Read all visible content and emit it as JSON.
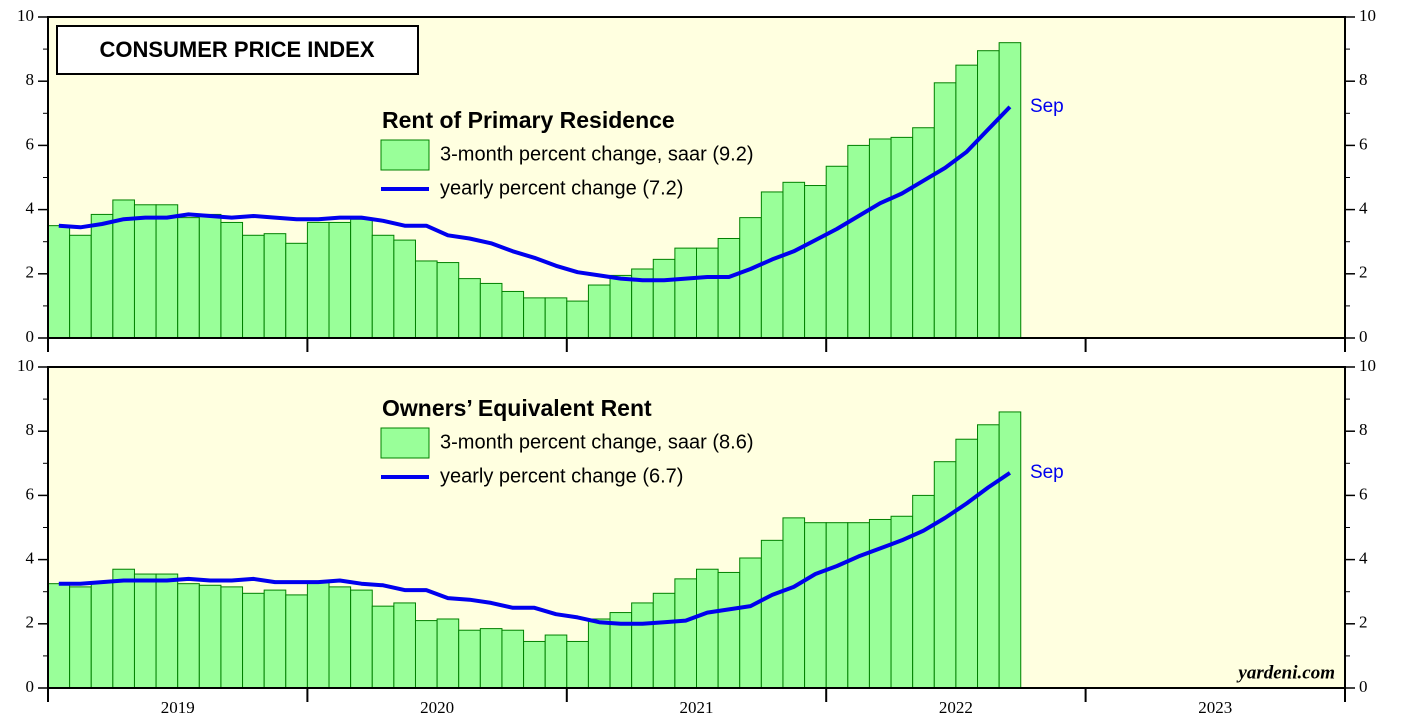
{
  "chart_data": [
    {
      "type": "bar",
      "title": "CONSUMER PRICE INDEX",
      "subtitle": "Rent of Primary Residence",
      "annotation": "Sep",
      "background": "#ffffe0",
      "ylim": [
        0,
        10
      ],
      "yticks": [
        0,
        2,
        4,
        6,
        8,
        10
      ],
      "series": [
        {
          "name": "3-month percent change, saar (9.2)",
          "type": "bar",
          "color": "#99ff99",
          "edge": "#008000",
          "values": [
            3.5,
            3.2,
            3.85,
            4.3,
            4.15,
            4.15,
            3.75,
            3.85,
            3.6,
            3.2,
            3.25,
            2.95,
            3.6,
            3.6,
            3.7,
            3.2,
            3.05,
            2.4,
            2.35,
            1.85,
            1.7,
            1.45,
            1.25,
            1.25,
            1.15,
            1.65,
            1.95,
            2.15,
            2.45,
            2.8,
            2.8,
            3.1,
            3.75,
            4.55,
            4.85,
            4.75,
            5.35,
            6.0,
            6.2,
            6.25,
            6.55,
            7.95,
            8.5,
            8.95,
            9.2
          ]
        },
        {
          "name": "yearly percent change (7.2)",
          "type": "line",
          "color": "#0000ee",
          "values": [
            3.5,
            3.45,
            3.55,
            3.7,
            3.75,
            3.75,
            3.85,
            3.8,
            3.75,
            3.8,
            3.75,
            3.7,
            3.7,
            3.75,
            3.75,
            3.65,
            3.5,
            3.5,
            3.2,
            3.1,
            2.95,
            2.7,
            2.5,
            2.25,
            2.05,
            1.95,
            1.85,
            1.8,
            1.8,
            1.85,
            1.9,
            1.9,
            2.15,
            2.45,
            2.7,
            3.05,
            3.4,
            3.8,
            4.2,
            4.5,
            4.9,
            5.3,
            5.8,
            6.5,
            7.2
          ]
        }
      ]
    },
    {
      "type": "bar",
      "subtitle": "Owners’ Equivalent Rent",
      "annotation": "Sep",
      "source": "yardeni.com",
      "background": "#ffffe0",
      "ylim": [
        0,
        10
      ],
      "yticks": [
        0,
        2,
        4,
        6,
        8,
        10
      ],
      "xlabels": [
        "2019",
        "2020",
        "2021",
        "2022",
        "2023"
      ],
      "series": [
        {
          "name": "3-month percent change, saar (8.6)",
          "type": "bar",
          "color": "#99ff99",
          "edge": "#008000",
          "values": [
            3.25,
            3.15,
            3.3,
            3.7,
            3.55,
            3.55,
            3.25,
            3.2,
            3.15,
            2.95,
            3.05,
            2.9,
            3.3,
            3.15,
            3.05,
            2.55,
            2.65,
            2.1,
            2.15,
            1.8,
            1.85,
            1.8,
            1.45,
            1.65,
            1.45,
            2.15,
            2.35,
            2.65,
            2.95,
            3.4,
            3.7,
            3.6,
            4.05,
            4.6,
            5.3,
            5.15,
            5.15,
            5.15,
            5.25,
            5.35,
            6.0,
            7.05,
            7.75,
            8.2,
            8.6
          ]
        },
        {
          "name": "yearly percent change (6.7)",
          "type": "line",
          "color": "#0000ee",
          "values": [
            3.25,
            3.25,
            3.3,
            3.35,
            3.35,
            3.35,
            3.4,
            3.35,
            3.35,
            3.4,
            3.3,
            3.3,
            3.3,
            3.35,
            3.25,
            3.2,
            3.05,
            3.05,
            2.8,
            2.75,
            2.65,
            2.5,
            2.5,
            2.3,
            2.2,
            2.05,
            2.0,
            2.0,
            2.05,
            2.1,
            2.35,
            2.45,
            2.55,
            2.9,
            3.15,
            3.55,
            3.8,
            4.1,
            4.35,
            4.6,
            4.9,
            5.3,
            5.75,
            6.25,
            6.7
          ]
        }
      ]
    }
  ]
}
